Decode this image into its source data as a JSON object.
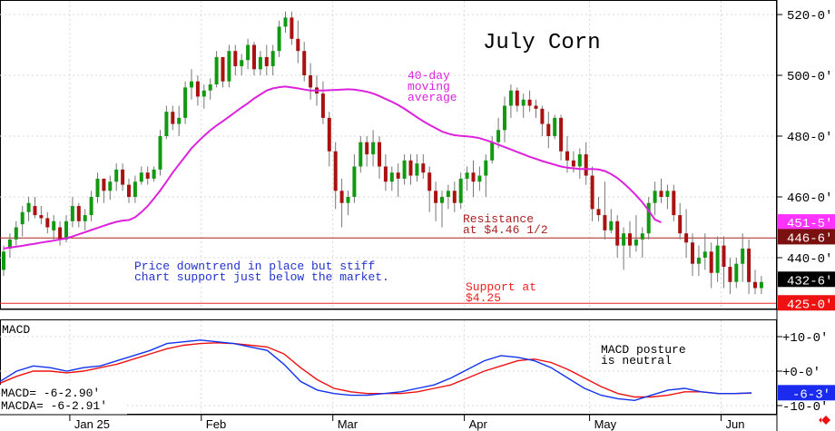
{
  "chart_data": {
    "type": "candlestick",
    "title": "July Corn",
    "price_axis": {
      "ticks": [
        520,
        500,
        480,
        460,
        440
      ],
      "tick_labels": [
        "520-0'",
        "500-0'",
        "480-0'",
        "460-0'",
        "440-0'"
      ],
      "range": [
        421,
        525
      ]
    },
    "price_tags": [
      {
        "label": "451-5'",
        "value": 451.625,
        "color": "#ff33ff",
        "text_color": "#ffffff"
      },
      {
        "label": "446-6'",
        "value": 446.75,
        "color": "#7a1010",
        "text_color": "#ffffff"
      },
      {
        "label": "432-6'",
        "value": 432.75,
        "color": "#000000",
        "text_color": "#ffffff"
      },
      {
        "label": "425-0'",
        "value": 425.0,
        "color": "#ee1111",
        "text_color": "#ffffff"
      }
    ],
    "x_axis": {
      "labels": [
        "Jan 25",
        "Feb",
        "Mar",
        "Apr",
        "May",
        "Jun"
      ],
      "label_bar_index": [
        11,
        32,
        53,
        74,
        94,
        115
      ]
    },
    "candles": [
      [
        436,
        444,
        434,
        442
      ],
      [
        443,
        448,
        440,
        446
      ],
      [
        446,
        452,
        444,
        450
      ],
      [
        451,
        457,
        447,
        455
      ],
      [
        455,
        460,
        452,
        458
      ],
      [
        457,
        460,
        453,
        454
      ],
      [
        454,
        457,
        451,
        453
      ],
      [
        453,
        455,
        448,
        450
      ],
      [
        449,
        454,
        446,
        452
      ],
      [
        450,
        452,
        444,
        446
      ],
      [
        446,
        454,
        445,
        452
      ],
      [
        452,
        460,
        450,
        457
      ],
      [
        457,
        458,
        450,
        452
      ],
      [
        452,
        456,
        449,
        454
      ],
      [
        454,
        462,
        452,
        460
      ],
      [
        460,
        468,
        458,
        466
      ],
      [
        466,
        466,
        458,
        462
      ],
      [
        462,
        467,
        459,
        465
      ],
      [
        465,
        471,
        462,
        469
      ],
      [
        469,
        471,
        462,
        464
      ],
      [
        464,
        466,
        458,
        460
      ],
      [
        460,
        467,
        458,
        465
      ],
      [
        465,
        470,
        464,
        468
      ],
      [
        468,
        470,
        464,
        466
      ],
      [
        466,
        470,
        465,
        469
      ],
      [
        469,
        482,
        467,
        480
      ],
      [
        480,
        490,
        479,
        488
      ],
      [
        488,
        490,
        482,
        484
      ],
      [
        484,
        490,
        480,
        486
      ],
      [
        486,
        498,
        484,
        496
      ],
      [
        496,
        502,
        492,
        498
      ],
      [
        498,
        500,
        490,
        493
      ],
      [
        493,
        497,
        489,
        495
      ],
      [
        495,
        499,
        492,
        497
      ],
      [
        497,
        508,
        496,
        506
      ],
      [
        506,
        506,
        496,
        498
      ],
      [
        498,
        510,
        496,
        508
      ],
      [
        508,
        510,
        500,
        503
      ],
      [
        503,
        507,
        500,
        505
      ],
      [
        505,
        512,
        502,
        510
      ],
      [
        510,
        511,
        500,
        502
      ],
      [
        502,
        508,
        500,
        506
      ],
      [
        506,
        510,
        500,
        503
      ],
      [
        503,
        510,
        500,
        508
      ],
      [
        508,
        518,
        506,
        516
      ],
      [
        516,
        521,
        514,
        519
      ],
      [
        519,
        521,
        510,
        512
      ],
      [
        512,
        518,
        504,
        508
      ],
      [
        508,
        511,
        498,
        500
      ],
      [
        500,
        504,
        492,
        496
      ],
      [
        496,
        500,
        490,
        494
      ],
      [
        494,
        498,
        484,
        486
      ],
      [
        486,
        488,
        470,
        475
      ],
      [
        475,
        478,
        456,
        462
      ],
      [
        462,
        466,
        450,
        458
      ],
      [
        458,
        462,
        454,
        460
      ],
      [
        460,
        474,
        458,
        470
      ],
      [
        470,
        480,
        468,
        478
      ],
      [
        478,
        480,
        470,
        474
      ],
      [
        474,
        482,
        470,
        478
      ],
      [
        478,
        480,
        466,
        470
      ],
      [
        470,
        474,
        462,
        465
      ],
      [
        465,
        470,
        462,
        468
      ],
      [
        468,
        471,
        460,
        466
      ],
      [
        466,
        474,
        464,
        472
      ],
      [
        472,
        474,
        464,
        467
      ],
      [
        467,
        474,
        465,
        471
      ],
      [
        471,
        474,
        466,
        468
      ],
      [
        468,
        470,
        455,
        462
      ],
      [
        462,
        465,
        452,
        458
      ],
      [
        458,
        462,
        450,
        460
      ],
      [
        460,
        464,
        456,
        462
      ],
      [
        462,
        465,
        455,
        458
      ],
      [
        458,
        468,
        456,
        466
      ],
      [
        466,
        470,
        462,
        468
      ],
      [
        468,
        472,
        460,
        465
      ],
      [
        465,
        470,
        462,
        467
      ],
      [
        467,
        474,
        460,
        472
      ],
      [
        472,
        480,
        471,
        478
      ],
      [
        478,
        486,
        476,
        482
      ],
      [
        482,
        493,
        478,
        490
      ],
      [
        490,
        497,
        486,
        495
      ],
      [
        495,
        496,
        488,
        490
      ],
      [
        490,
        494,
        486,
        492
      ],
      [
        492,
        495,
        488,
        490
      ],
      [
        490,
        492,
        486,
        489
      ],
      [
        489,
        490,
        480,
        484
      ],
      [
        484,
        488,
        476,
        480
      ],
      [
        480,
        487,
        479,
        486
      ],
      [
        486,
        487,
        472,
        475
      ],
      [
        475,
        480,
        468,
        472
      ],
      [
        472,
        475,
        468,
        470
      ],
      [
        470,
        476,
        466,
        474
      ],
      [
        474,
        478,
        464,
        467
      ],
      [
        467,
        470,
        452,
        456
      ],
      [
        456,
        460,
        452,
        454
      ],
      [
        454,
        465,
        446,
        449
      ],
      [
        449,
        456,
        448,
        452
      ],
      [
        452,
        454,
        440,
        444
      ],
      [
        444,
        450,
        436,
        448
      ],
      [
        448,
        452,
        440,
        444
      ],
      [
        444,
        454,
        442,
        446
      ],
      [
        446,
        450,
        440,
        448
      ],
      [
        448,
        460,
        446,
        458
      ],
      [
        458,
        465,
        454,
        462
      ],
      [
        462,
        466,
        458,
        460
      ],
      [
        460,
        464,
        456,
        462
      ],
      [
        462,
        464,
        452,
        454
      ],
      [
        454,
        458,
        446,
        448
      ],
      [
        448,
        456,
        440,
        445
      ],
      [
        445,
        448,
        434,
        438
      ],
      [
        438,
        444,
        434,
        440
      ],
      [
        440,
        448,
        436,
        442
      ],
      [
        442,
        445,
        430,
        435
      ],
      [
        435,
        447,
        432,
        444
      ],
      [
        444,
        447,
        430,
        437
      ],
      [
        437,
        440,
        428,
        432
      ],
      [
        432,
        440,
        430,
        438
      ],
      [
        438,
        448,
        432,
        443
      ],
      [
        443,
        446,
        428,
        432
      ],
      [
        432,
        436,
        428,
        430
      ],
      [
        430,
        434,
        428,
        432
      ]
    ],
    "moving_average": {
      "label": "40-day moving average",
      "color": "#dd22dd",
      "values": [
        443,
        443.3,
        443.6,
        443.9,
        444.3,
        444.6,
        445,
        445.3,
        445.6,
        446,
        446.4,
        447,
        447.7,
        448.4,
        449.1,
        449.8,
        450.5,
        451.2,
        451.8,
        452.2,
        452.4,
        453.3,
        455,
        457,
        459.5,
        462.1,
        465,
        468,
        470.7,
        473.3,
        476,
        478.1,
        480.1,
        481.9,
        483.5,
        484.9,
        486.4,
        487.9,
        489.4,
        490.8,
        492.4,
        493.7,
        495,
        495.7,
        496.1,
        496.3,
        496,
        495.7,
        495.3,
        495,
        495,
        495,
        495.1,
        495.2,
        495.3,
        495.4,
        495.3,
        495,
        494.6,
        494,
        493.2,
        492.2,
        491.3,
        490.2,
        489,
        487.6,
        486.2,
        484.9,
        483.7,
        482.6,
        481.5,
        480.8,
        480.3,
        480.1,
        479.9,
        479.7,
        479.3,
        478.7,
        478,
        477.2,
        476.4,
        475.6,
        474.8,
        474,
        473.2,
        472.5,
        471.8,
        471.2,
        470.6,
        470,
        469.6,
        469.4,
        469.2,
        469.2,
        469.2,
        469,
        468.5,
        467.5,
        466.2,
        464.5,
        462.6,
        460.5,
        458.2,
        455.5,
        452.5,
        451.6
      ]
    },
    "lines": [
      {
        "value": 446.5,
        "color": "#aa2222",
        "label": "Resistance\nat $4.46 1/2"
      },
      {
        "value": 425.0,
        "color": "#ee2222",
        "label": "Support at\n$4.25"
      }
    ],
    "annotations": [
      {
        "text": "Price downtrend in place but stiff\nchart support just below the market.",
        "color": "#2233cc"
      }
    ],
    "macd": {
      "title": "MACD",
      "axis_tick_labels": [
        "+10-0'",
        "+0-0'",
        "-10-0'"
      ],
      "axis_ticks": [
        10,
        0,
        -10
      ],
      "range": [
        -12,
        14
      ],
      "current_tag": {
        "label": "-6-3'",
        "value": -6.4,
        "color": "#1a2aee",
        "text_color": "#ffffff"
      },
      "readout": [
        "MACD=  -6-2.90'",
        "MACDA= -6-2.91'"
      ],
      "note": "MACD posture\nis neutral",
      "macd_color": "#1133ee",
      "signal_color": "#ee1111",
      "points": [
        [
          -3,
          -3.5
        ],
        [
          0,
          -1.5
        ],
        [
          1.5,
          0
        ],
        [
          1,
          0
        ],
        [
          0,
          -0.5
        ],
        [
          1,
          0
        ],
        [
          1.5,
          1
        ],
        [
          3,
          2
        ],
        [
          4.5,
          3.5
        ],
        [
          6,
          5
        ],
        [
          8,
          6.5
        ],
        [
          8.5,
          7.5
        ],
        [
          9,
          8
        ],
        [
          8.5,
          8.2
        ],
        [
          8,
          8
        ],
        [
          7,
          7.5
        ],
        [
          6,
          7
        ],
        [
          2,
          5
        ],
        [
          -3,
          1
        ],
        [
          -5.5,
          -2.5
        ],
        [
          -6.5,
          -5
        ],
        [
          -7,
          -6
        ],
        [
          -7,
          -6.5
        ],
        [
          -6.5,
          -6.5
        ],
        [
          -6,
          -6.5
        ],
        [
          -5,
          -6
        ],
        [
          -4,
          -5
        ],
        [
          -2,
          -4
        ],
        [
          0.5,
          -2
        ],
        [
          3,
          0
        ],
        [
          4.5,
          1.5
        ],
        [
          4,
          3
        ],
        [
          3,
          3.5
        ],
        [
          1,
          2.5
        ],
        [
          -2,
          0.5
        ],
        [
          -5,
          -2
        ],
        [
          -7,
          -4.5
        ],
        [
          -8,
          -6.5
        ],
        [
          -8.5,
          -7.5
        ],
        [
          -7,
          -7.5
        ],
        [
          -5.5,
          -7
        ],
        [
          -5,
          -6
        ],
        [
          -6,
          -6
        ],
        [
          -6.5,
          -6.5
        ],
        [
          -6.5,
          -6.5
        ],
        [
          -6.3,
          -6.4
        ]
      ]
    }
  },
  "legend_labels": {
    "ma_line1": "40-day",
    "ma_line2": "moving",
    "ma_line3": "average",
    "res_line1": "Resistance",
    "res_line2": "at $4.46 1/2",
    "sup_line1": "Support at",
    "sup_line2": "$4.25",
    "note_line1": "Price downtrend in place but stiff",
    "note_line2": "chart support just below the market.",
    "macd_note1": "MACD posture",
    "macd_note2": "is neutral"
  },
  "icons": {
    "corner_diamond": "diamond-arrows-icon"
  }
}
